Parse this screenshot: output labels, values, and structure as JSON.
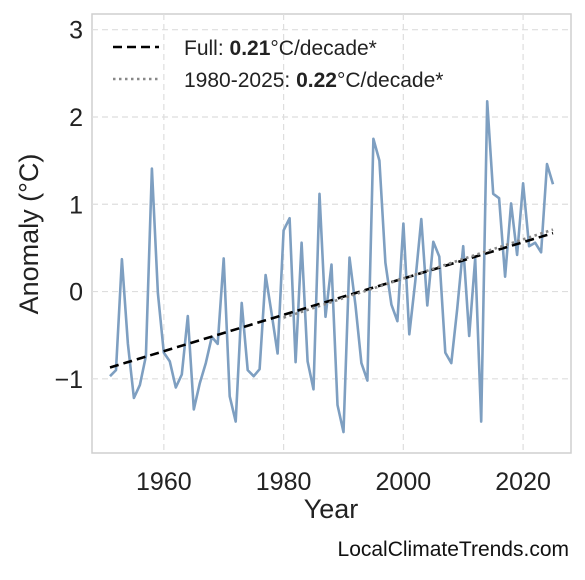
{
  "chart_data": {
    "type": "line",
    "xlabel": "Year",
    "ylabel": "Anomaly (°C)",
    "xlim": [
      1948,
      2028
    ],
    "ylim": [
      -1.85,
      3.18
    ],
    "xticks": [
      1960,
      1980,
      2000,
      2020
    ],
    "yticks": [
      -1,
      0,
      1,
      2,
      3
    ],
    "ytick_labels": [
      "−1",
      "0",
      "1",
      "2",
      "3"
    ],
    "grid": true,
    "legend_position": "top-left",
    "series": [
      {
        "type": "line",
        "color": "#7e9fc1",
        "x": [
          1951,
          1952,
          1953,
          1954,
          1955,
          1956,
          1957,
          1958,
          1959,
          1960,
          1961,
          1962,
          1963,
          1964,
          1965,
          1966,
          1967,
          1968,
          1969,
          1970,
          1971,
          1972,
          1973,
          1974,
          1975,
          1976,
          1977,
          1978,
          1979,
          1980,
          1981,
          1982,
          1983,
          1984,
          1985,
          1986,
          1987,
          1988,
          1989,
          1990,
          1991,
          1992,
          1993,
          1994,
          1995,
          1996,
          1997,
          1998,
          1999,
          2000,
          2001,
          2002,
          2003,
          2004,
          2005,
          2006,
          2007,
          2008,
          2009,
          2010,
          2011,
          2012,
          2013,
          2014,
          2015,
          2016,
          2017,
          2018,
          2019,
          2020,
          2021,
          2022,
          2023,
          2024,
          2025
        ],
        "y": [
          -0.97,
          -0.9,
          0.37,
          -0.6,
          -1.22,
          -1.07,
          -0.74,
          1.41,
          -0.02,
          -0.7,
          -0.8,
          -1.1,
          -0.95,
          -0.28,
          -1.35,
          -1.05,
          -0.82,
          -0.52,
          -0.6,
          0.38,
          -1.2,
          -1.49,
          -0.13,
          -0.9,
          -0.97,
          -0.89,
          0.19,
          -0.25,
          -0.71,
          0.7,
          0.84,
          -0.81,
          0.56,
          -0.8,
          -1.12,
          1.12,
          -0.29,
          0.31,
          -1.3,
          -1.61,
          0.39,
          -0.16,
          -0.82,
          -1.02,
          1.75,
          1.5,
          0.33,
          -0.15,
          -0.34,
          0.78,
          -0.49,
          0.12,
          0.83,
          -0.16,
          0.57,
          0.4,
          -0.7,
          -0.82,
          -0.2,
          0.52,
          -0.51,
          0.38,
          -1.49,
          2.18,
          1.12,
          1.07,
          0.17,
          1.01,
          0.42,
          1.24,
          0.52,
          0.56,
          0.45,
          1.46,
          1.23
        ]
      },
      {
        "type": "trend",
        "style": "dashed",
        "color": "#000000",
        "x": [
          1951,
          2025
        ],
        "y": [
          -0.87,
          0.67
        ]
      },
      {
        "type": "trend",
        "style": "dotted",
        "color": "#888888",
        "x": [
          1980,
          2025
        ],
        "y": [
          -0.3,
          0.71
        ]
      }
    ],
    "legend": [
      {
        "style": "dashed",
        "color": "#000000",
        "prefix": "Full: ",
        "value": "0.21",
        "suffix": "°C/decade*"
      },
      {
        "style": "dotted",
        "color": "#888888",
        "prefix": "1980-2025: ",
        "value": "0.22",
        "suffix": "°C/decade*"
      }
    ]
  },
  "watermark": "LocalClimateTrends.com"
}
